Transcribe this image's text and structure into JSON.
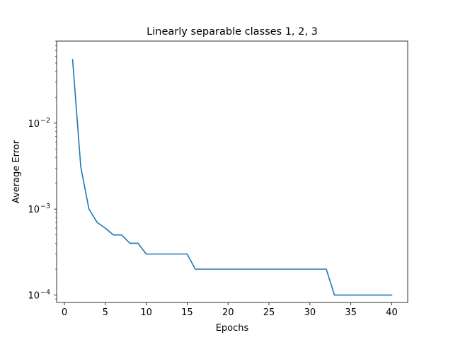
{
  "chart_data": {
    "type": "line",
    "title": "Linearly separable classes 1, 2, 3",
    "xlabel": "Epochs",
    "ylabel": "Average Error",
    "xlim": [
      -0.95,
      41.95
    ],
    "ylim": [
      8.2e-05,
      0.09
    ],
    "yscale": "log",
    "xticks": [
      0,
      5,
      10,
      15,
      20,
      25,
      30,
      35,
      40
    ],
    "xtick_labels": [
      "0",
      "5",
      "10",
      "15",
      "20",
      "25",
      "30",
      "35",
      "40"
    ],
    "yticks": [
      0.0001,
      0.001,
      0.01
    ],
    "ytick_base": "10",
    "ytick_exponents": [
      "−4",
      "−3",
      "−2"
    ],
    "grid": false,
    "series": [
      {
        "color": "#1f77b4",
        "x": [
          1,
          2,
          3,
          4,
          5,
          6,
          7,
          8,
          9,
          10,
          11,
          12,
          13,
          14,
          15,
          16,
          17,
          18,
          19,
          20,
          21,
          22,
          23,
          24,
          25,
          26,
          27,
          28,
          29,
          30,
          31,
          32,
          33,
          34,
          35,
          36,
          37,
          38,
          39,
          40
        ],
        "values": [
          0.055,
          0.0031,
          0.001,
          0.0007,
          0.0006,
          0.0005,
          0.0005,
          0.0004,
          0.0004,
          0.0003,
          0.0003,
          0.0003,
          0.0003,
          0.0003,
          0.0003,
          0.0002,
          0.0002,
          0.0002,
          0.0002,
          0.0002,
          0.0002,
          0.0002,
          0.0002,
          0.0002,
          0.0002,
          0.0002,
          0.0002,
          0.0002,
          0.0002,
          0.0002,
          0.0002,
          0.0002,
          0.0001,
          0.0001,
          0.0001,
          0.0001,
          0.0001,
          0.0001,
          0.0001,
          0.0001
        ]
      }
    ]
  }
}
